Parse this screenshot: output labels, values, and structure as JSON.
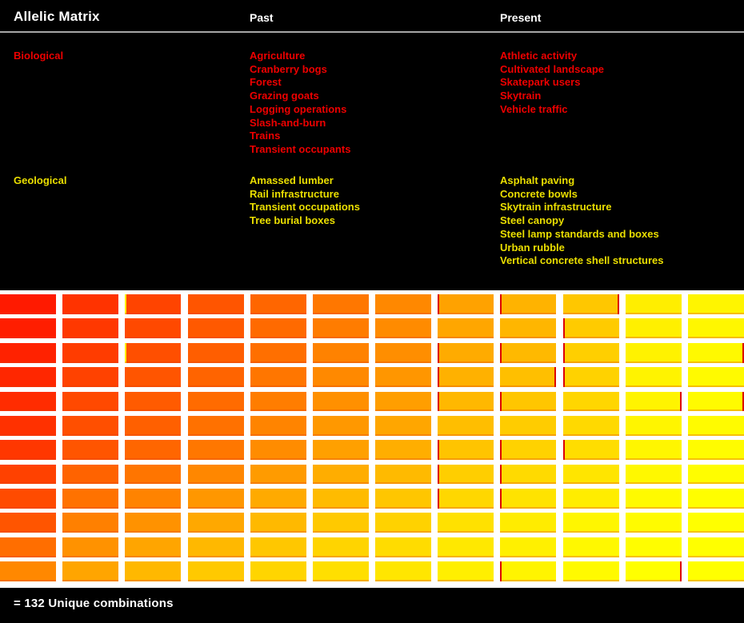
{
  "header": {
    "title": "Allelic Matrix",
    "columns": {
      "past": "Past",
      "present": "Present"
    }
  },
  "categories": [
    {
      "label": "Biological",
      "color": "#ee0000",
      "past": [
        "Agriculture",
        "Cranberry bogs",
        "Forest",
        "Grazing goats",
        "Logging operations",
        "Slash-and-burn",
        "Trains",
        "Transient occupants"
      ],
      "present": [
        "Athletic activity",
        "Cultivated landscape",
        "Skatepark users",
        "Skytrain",
        "Vehicle traffic"
      ]
    },
    {
      "label": "Geological",
      "color": "#ebdf00",
      "past": [
        "Amassed lumber",
        "Rail infrastructure",
        "Transient occupations",
        "Tree burial boxes"
      ],
      "present": [
        "Asphalt paving",
        "Concrete bowls",
        "Skytrain infrastructure",
        "Steel canopy",
        "Steel lamp standards and boxes",
        "Urban rubble",
        "Vertical concrete shell structures"
      ]
    }
  ],
  "footer": {
    "label": "= 132 Unique combinations"
  },
  "colors": {
    "background": "#000000",
    "grid_panel": "#ffffff",
    "divider": "#a6a6a6",
    "text": "#ffffff"
  },
  "chart_data": {
    "type": "heatmap",
    "title": "Allelic Matrix",
    "rows": 12,
    "cols": 12,
    "legend": "= 132 Unique combinations",
    "palette": {
      "start": "#ff1a00",
      "end": "#ffff00"
    },
    "cell_colors": [
      [
        "#ff1a00",
        "#ff3300",
        "#ff4400",
        "#ff5500",
        "#ff6600",
        "#ff7700",
        "#ff8800",
        "#ffa200",
        "#ffb300",
        "#ffc700",
        "#ffee00",
        "#fff500"
      ],
      [
        "#ff1e00",
        "#ff3800",
        "#ff4900",
        "#ff5900",
        "#ff6a00",
        "#ff7c00",
        "#ff8b00",
        "#ffa600",
        "#ffb600",
        "#ffcb00",
        "#fff000",
        "#fff700"
      ],
      [
        "#ff2200",
        "#ff3c00",
        "#ff4f00",
        "#ff5e00",
        "#ff6f00",
        "#ff8200",
        "#ff8e00",
        "#ffab00",
        "#ffb900",
        "#ffcf00",
        "#fff200",
        "#fff900"
      ],
      [
        "#ff2700",
        "#ff4200",
        "#ff5500",
        "#ff6400",
        "#ff7600",
        "#ff8900",
        "#ff9600",
        "#ffb100",
        "#ffbf00",
        "#ffd200",
        "#fff300",
        "#fffa00"
      ],
      [
        "#ff2c00",
        "#ff4900",
        "#ff5b00",
        "#ff6b00",
        "#ff7d00",
        "#ff9000",
        "#ff9e00",
        "#ffb800",
        "#ffc600",
        "#ffd600",
        "#fff400",
        "#fffb00"
      ],
      [
        "#ff3100",
        "#ff4f00",
        "#ff6000",
        "#ff7100",
        "#ff8400",
        "#ff9800",
        "#ffa600",
        "#ffbe00",
        "#ffcc00",
        "#ffd900",
        "#fff500",
        "#fffb00"
      ],
      [
        "#ff3700",
        "#ff5500",
        "#ff6600",
        "#ff7700",
        "#ff8c00",
        "#ffa000",
        "#ffae00",
        "#ffc400",
        "#ffd200",
        "#ffdd00",
        "#fff600",
        "#fffc00"
      ],
      [
        "#ff4100",
        "#ff6300",
        "#ff7500",
        "#ff8700",
        "#ff9b00",
        "#ffad00",
        "#ffba00",
        "#ffce00",
        "#ffda00",
        "#ffe500",
        "#fff800",
        "#fffd00"
      ],
      [
        "#ff4b00",
        "#ff7200",
        "#ff8300",
        "#ff9700",
        "#ffaa00",
        "#ffbb00",
        "#ffc600",
        "#ffd700",
        "#ffe300",
        "#ffed00",
        "#fffa00",
        "#fffe00"
      ],
      [
        "#ff5500",
        "#ff8000",
        "#ff9200",
        "#ffa800",
        "#ffb900",
        "#ffc900",
        "#ffd200",
        "#ffe100",
        "#ffec00",
        "#fff600",
        "#fffb00",
        "#ffff00"
      ],
      [
        "#ff6e00",
        "#ff9200",
        "#ffa500",
        "#ffb800",
        "#ffc700",
        "#ffd400",
        "#ffdc00",
        "#ffe800",
        "#fff000",
        "#fff800",
        "#fffd00",
        "#ffff00"
      ],
      [
        "#ff8800",
        "#ffa500",
        "#ffb800",
        "#ffc900",
        "#ffd500",
        "#ffdf00",
        "#ffe600",
        "#ffef00",
        "#fff400",
        "#fffa00",
        "#ffff00",
        "#ffff00"
      ]
    ],
    "slivers": [
      {
        "row": 1,
        "col": 3,
        "side": "left",
        "color": "#ffee00"
      },
      {
        "row": 1,
        "col": 8,
        "side": "left",
        "color": "#dd0000"
      },
      {
        "row": 1,
        "col": 9,
        "side": "left",
        "color": "#dd0000"
      },
      {
        "row": 1,
        "col": 10,
        "side": "right",
        "color": "#dd0000"
      },
      {
        "row": 2,
        "col": 10,
        "side": "left",
        "color": "#dd0000"
      },
      {
        "row": 3,
        "col": 3,
        "side": "left",
        "color": "#ffee00"
      },
      {
        "row": 3,
        "col": 8,
        "side": "left",
        "color": "#dd0000"
      },
      {
        "row": 3,
        "col": 9,
        "side": "left",
        "color": "#dd0000"
      },
      {
        "row": 3,
        "col": 10,
        "side": "left",
        "color": "#dd0000"
      },
      {
        "row": 3,
        "col": 12,
        "side": "right",
        "color": "#dd0000"
      },
      {
        "row": 4,
        "col": 8,
        "side": "left",
        "color": "#dd0000"
      },
      {
        "row": 4,
        "col": 9,
        "side": "right",
        "color": "#dd0000"
      },
      {
        "row": 4,
        "col": 10,
        "side": "left",
        "color": "#dd0000"
      },
      {
        "row": 5,
        "col": 8,
        "side": "left",
        "color": "#dd0000"
      },
      {
        "row": 5,
        "col": 9,
        "side": "left",
        "color": "#dd0000"
      },
      {
        "row": 5,
        "col": 11,
        "side": "right",
        "color": "#dd0000"
      },
      {
        "row": 5,
        "col": 12,
        "side": "right",
        "color": "#dd0000"
      },
      {
        "row": 7,
        "col": 8,
        "side": "left",
        "color": "#dd0000"
      },
      {
        "row": 7,
        "col": 9,
        "side": "left",
        "color": "#dd0000"
      },
      {
        "row": 7,
        "col": 10,
        "side": "left",
        "color": "#dd0000"
      },
      {
        "row": 8,
        "col": 8,
        "side": "left",
        "color": "#dd0000"
      },
      {
        "row": 8,
        "col": 9,
        "side": "left",
        "color": "#dd0000"
      },
      {
        "row": 9,
        "col": 8,
        "side": "left",
        "color": "#dd0000"
      },
      {
        "row": 9,
        "col": 9,
        "side": "left",
        "color": "#dd0000"
      },
      {
        "row": 12,
        "col": 9,
        "side": "left",
        "color": "#dd0000"
      },
      {
        "row": 12,
        "col": 11,
        "side": "right",
        "color": "#dd0000"
      }
    ]
  }
}
